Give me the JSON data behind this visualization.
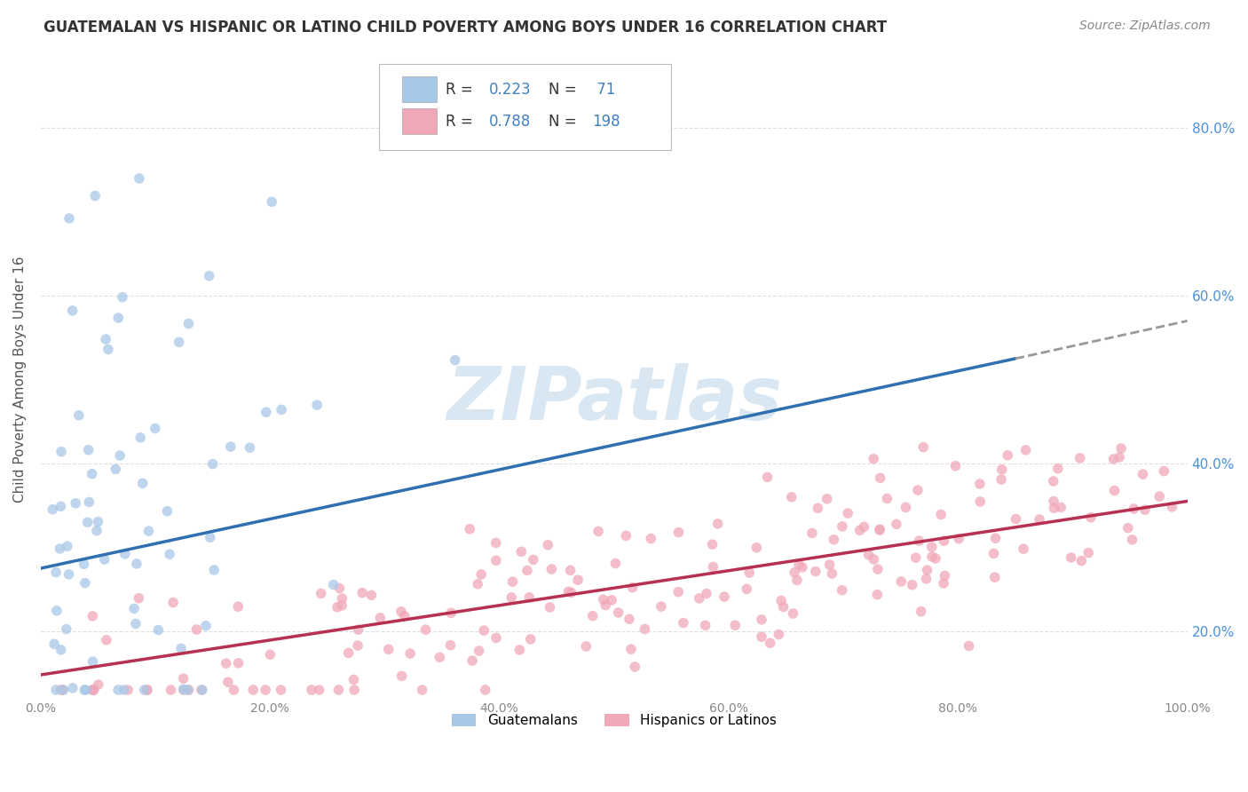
{
  "title": "GUATEMALAN VS HISPANIC OR LATINO CHILD POVERTY AMONG BOYS UNDER 16 CORRELATION CHART",
  "source": "Source: ZipAtlas.com",
  "ylabel": "Child Poverty Among Boys Under 16",
  "xlim": [
    0,
    1.0
  ],
  "ylim": [
    0.12,
    0.88
  ],
  "xticks": [
    0.0,
    0.2,
    0.4,
    0.6,
    0.8,
    1.0
  ],
  "xtick_labels": [
    "0.0%",
    "20.0%",
    "40.0%",
    "60.0%",
    "80.0%",
    "100.0%"
  ],
  "yticks_right": [
    0.2,
    0.4,
    0.6,
    0.8
  ],
  "ytick_labels_right": [
    "20.0%",
    "40.0%",
    "60.0%",
    "80.0%"
  ],
  "blue_R": 0.223,
  "blue_N": 71,
  "pink_R": 0.788,
  "pink_N": 198,
  "blue_color": "#A8C8E8",
  "pink_color": "#F0A8B8",
  "blue_line_color": "#3070B0",
  "pink_line_color": "#B83050",
  "dot_size": 70,
  "dot_alpha": 0.75,
  "watermark": "ZIPatlas",
  "watermark_color": "#C0D8EC",
  "legend_label_blue": "Guatemalans",
  "legend_label_pink": "Hispanics or Latinos",
  "blue_line_x0": 0.0,
  "blue_line_y0": 0.275,
  "blue_line_x1": 0.85,
  "blue_line_y1": 0.525,
  "blue_line_dash_x0": 0.85,
  "blue_line_dash_y0": 0.525,
  "blue_line_dash_x1": 1.0,
  "blue_line_dash_y1": 0.57,
  "pink_line_x0": 0.0,
  "pink_line_y0": 0.148,
  "pink_line_x1": 1.0,
  "pink_line_y1": 0.355,
  "grid_color": "#DDDDDD",
  "grid_style": "--",
  "legend_R_color": "#4080C0",
  "legend_N_color": "#4080C0",
  "title_color": "#333333",
  "source_color": "#888888",
  "ylabel_color": "#555555",
  "tick_label_color": "#888888",
  "right_tick_color": "#4A90D9"
}
